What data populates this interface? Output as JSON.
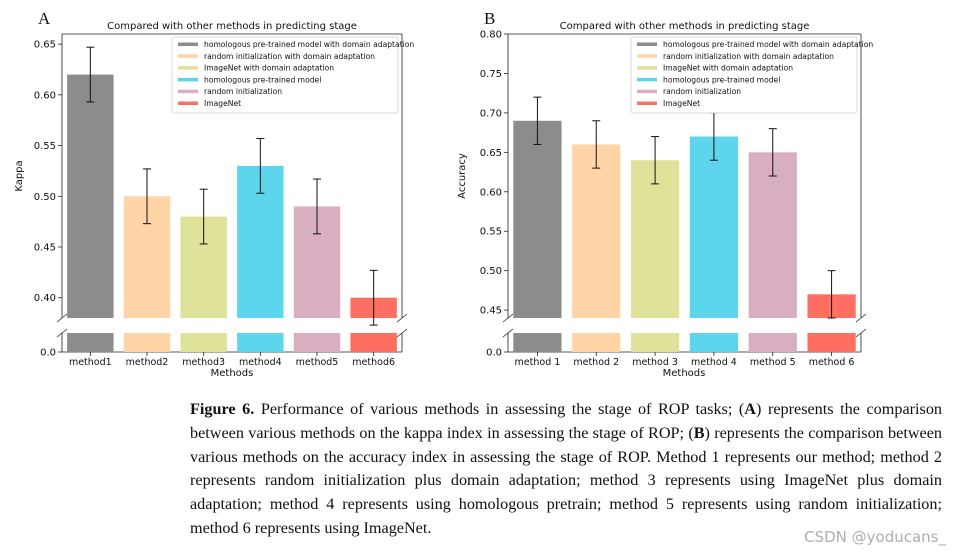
{
  "chart_data": [
    {
      "panel": "A",
      "type": "bar",
      "title": "Compared with other methods in predicting stage",
      "xlabel": "Methods",
      "ylabel": "Kappa",
      "categories": [
        "method1",
        "method2",
        "method3",
        "method4",
        "method5",
        "method6"
      ],
      "values": [
        0.62,
        0.5,
        0.48,
        0.53,
        0.49,
        0.4
      ],
      "errors": [
        0.027,
        0.027,
        0.027,
        0.027,
        0.027,
        0.027
      ],
      "colors": [
        "#8c8c8c",
        "#ffd4a6",
        "#dfe39a",
        "#5dd5ec",
        "#d8aec0",
        "#ff6f61"
      ],
      "ylim": [
        0.38,
        0.66
      ],
      "yticks": [
        0.4,
        0.45,
        0.5,
        0.55,
        0.6,
        0.65
      ],
      "ytick_labels": [
        "0.40",
        "0.45",
        "0.50",
        "0.55",
        "0.60",
        "0.65"
      ],
      "broken_axis_bottom_label": "0.0",
      "legend": [
        "homologous pre-trained model with domain adaptation",
        "random initialization with domain adaptation",
        "ImageNet with domain adaptation",
        "homologous pre-trained model",
        "random initialization",
        "ImageNet"
      ],
      "legend_position": "top-right"
    },
    {
      "panel": "B",
      "type": "bar",
      "title": "Compared with other methods in predicting stage",
      "xlabel": "Methods",
      "ylabel": "Accuracy",
      "categories": [
        "method 1",
        "method 2",
        "method 3",
        "method 4",
        "method 5",
        "method 6"
      ],
      "values": [
        0.69,
        0.66,
        0.64,
        0.67,
        0.65,
        0.47
      ],
      "errors": [
        0.03,
        0.03,
        0.03,
        0.03,
        0.03,
        0.03
      ],
      "colors": [
        "#8c8c8c",
        "#ffd4a6",
        "#dfe39a",
        "#5dd5ec",
        "#d8aec0",
        "#ff6f61"
      ],
      "ylim": [
        0.44,
        0.8
      ],
      "yticks": [
        0.45,
        0.5,
        0.55,
        0.6,
        0.65,
        0.7,
        0.75,
        0.8
      ],
      "ytick_labels": [
        "0.45",
        "0.50",
        "0.55",
        "0.60",
        "0.65",
        "0.70",
        "0.75",
        "0.80"
      ],
      "broken_axis_bottom_label": "0.0",
      "legend": [
        "homologous pre-trained model with domain adaptation",
        "random initialization with domain adaptation",
        "ImageNet with domain adaptation",
        "homologous pre-trained model",
        "random initialization",
        "ImageNet"
      ],
      "legend_position": "top-right"
    }
  ],
  "caption": {
    "label": "Figure 6.",
    "intro": " Performance of various methods in assessing the stage of ROP tasks; (",
    "a": "A",
    "mid1": ") represents the comparison between various methods on the kappa index in assessing the stage of ROP; (",
    "b": "B",
    "mid2": ") represents the comparison between various methods on the accuracy index in assessing the stage of ROP. Method 1 represents our method; method 2 represents random initialization plus domain adaptation; method 3 represents using ImageNet plus domain adaptation; method 4 represents using homologous pretrain; method 5 represents using random initialization; method 6 represents using ImageNet."
  },
  "watermark": "CSDN @yoducans_"
}
